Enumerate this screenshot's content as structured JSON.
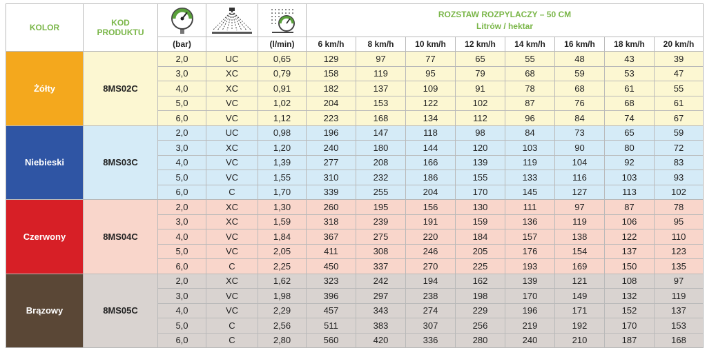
{
  "header": {
    "kolor": "KOLOR",
    "kod_line1": "KOD",
    "kod_line2": "PRODUKTU",
    "title": "ROZSTAW ROZPYLACZY – 50 CM",
    "subtitle": "Litrów / hektar",
    "unit_pressure": "(bar)",
    "unit_flow": "(l/min)",
    "speeds": [
      "6 km/h",
      "8 km/h",
      "10 km/h",
      "12 km/h",
      "14 km/h",
      "16 km/h",
      "18 km/h",
      "20 km/h"
    ]
  },
  "icons": {
    "pressure": "pressure-gauge-icon",
    "spray": "spray-pattern-icon",
    "flow": "flow-meter-icon"
  },
  "groups": [
    {
      "color_name": "Żółty",
      "code": "8MS02C",
      "swatch": "#f4a81d",
      "rows": [
        {
          "bar": "2,0",
          "cls": "UC",
          "flow": "0,65",
          "rates": [
            "129",
            "97",
            "77",
            "65",
            "55",
            "48",
            "43",
            "39"
          ]
        },
        {
          "bar": "3,0",
          "cls": "XC",
          "flow": "0,79",
          "rates": [
            "158",
            "119",
            "95",
            "79",
            "68",
            "59",
            "53",
            "47"
          ]
        },
        {
          "bar": "4,0",
          "cls": "XC",
          "flow": "0,91",
          "rates": [
            "182",
            "137",
            "109",
            "91",
            "78",
            "68",
            "61",
            "55"
          ]
        },
        {
          "bar": "5,0",
          "cls": "VC",
          "flow": "1,02",
          "rates": [
            "204",
            "153",
            "122",
            "102",
            "87",
            "76",
            "68",
            "61"
          ]
        },
        {
          "bar": "6,0",
          "cls": "VC",
          "flow": "1,12",
          "rates": [
            "223",
            "168",
            "134",
            "112",
            "96",
            "84",
            "74",
            "67"
          ]
        }
      ]
    },
    {
      "color_name": "Niebieski",
      "code": "8MS03C",
      "swatch": "#2f55a4",
      "rows": [
        {
          "bar": "2,0",
          "cls": "UC",
          "flow": "0,98",
          "rates": [
            "196",
            "147",
            "118",
            "98",
            "84",
            "73",
            "65",
            "59"
          ]
        },
        {
          "bar": "3,0",
          "cls": "XC",
          "flow": "1,20",
          "rates": [
            "240",
            "180",
            "144",
            "120",
            "103",
            "90",
            "80",
            "72"
          ]
        },
        {
          "bar": "4,0",
          "cls": "VC",
          "flow": "1,39",
          "rates": [
            "277",
            "208",
            "166",
            "139",
            "119",
            "104",
            "92",
            "83"
          ]
        },
        {
          "bar": "5,0",
          "cls": "VC",
          "flow": "1,55",
          "rates": [
            "310",
            "232",
            "186",
            "155",
            "133",
            "116",
            "103",
            "93"
          ]
        },
        {
          "bar": "6,0",
          "cls": "C",
          "flow": "1,70",
          "rates": [
            "339",
            "255",
            "204",
            "170",
            "145",
            "127",
            "113",
            "102"
          ]
        }
      ]
    },
    {
      "color_name": "Czerwony",
      "code": "8MS04C",
      "swatch": "#d71f26",
      "rows": [
        {
          "bar": "2,0",
          "cls": "XC",
          "flow": "1,30",
          "rates": [
            "260",
            "195",
            "156",
            "130",
            "111",
            "97",
            "87",
            "78"
          ]
        },
        {
          "bar": "3,0",
          "cls": "XC",
          "flow": "1,59",
          "rates": [
            "318",
            "239",
            "191",
            "159",
            "136",
            "119",
            "106",
            "95"
          ]
        },
        {
          "bar": "4,0",
          "cls": "VC",
          "flow": "1,84",
          "rates": [
            "367",
            "275",
            "220",
            "184",
            "157",
            "138",
            "122",
            "110"
          ]
        },
        {
          "bar": "5,0",
          "cls": "VC",
          "flow": "2,05",
          "rates": [
            "411",
            "308",
            "246",
            "205",
            "176",
            "154",
            "137",
            "123"
          ]
        },
        {
          "bar": "6,0",
          "cls": "C",
          "flow": "2,25",
          "rates": [
            "450",
            "337",
            "270",
            "225",
            "193",
            "169",
            "150",
            "135"
          ]
        }
      ]
    },
    {
      "color_name": "Brązowy",
      "code": "8MS05C",
      "swatch": "#5a4736",
      "rows": [
        {
          "bar": "2,0",
          "cls": "XC",
          "flow": "1,62",
          "rates": [
            "323",
            "242",
            "194",
            "162",
            "139",
            "121",
            "108",
            "97"
          ]
        },
        {
          "bar": "3,0",
          "cls": "VC",
          "flow": "1,98",
          "rates": [
            "396",
            "297",
            "238",
            "198",
            "170",
            "149",
            "132",
            "119"
          ]
        },
        {
          "bar": "4,0",
          "cls": "VC",
          "flow": "2,29",
          "rates": [
            "457",
            "343",
            "274",
            "229",
            "196",
            "171",
            "152",
            "137"
          ]
        },
        {
          "bar": "5,0",
          "cls": "C",
          "flow": "2,56",
          "rates": [
            "511",
            "383",
            "307",
            "256",
            "219",
            "192",
            "170",
            "153"
          ]
        },
        {
          "bar": "6,0",
          "cls": "C",
          "flow": "2,80",
          "rates": [
            "560",
            "420",
            "336",
            "280",
            "240",
            "210",
            "187",
            "168"
          ]
        }
      ]
    }
  ]
}
